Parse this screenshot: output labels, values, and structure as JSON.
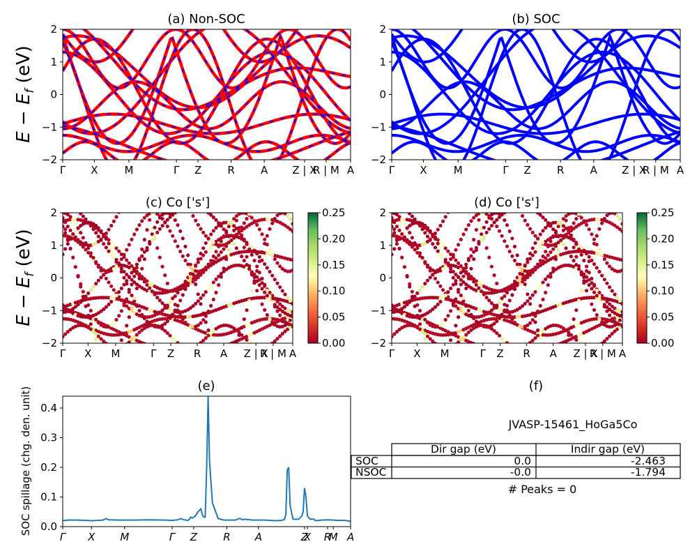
{
  "chart_data": [
    {
      "id": "a",
      "type": "line",
      "title": "(a) Non-SOC",
      "ylabel": "E − E_f (eV)",
      "ylim": [
        -2,
        2
      ],
      "yticks": [
        "−2",
        "−1",
        "0",
        "1",
        "2"
      ],
      "kpath": [
        "Γ",
        "X",
        "M",
        "Γ",
        "Z",
        "R",
        "A",
        "Z | X",
        "R | M",
        "A"
      ],
      "kpath_pos": [
        0,
        0.11,
        0.23,
        0.395,
        0.47,
        0.585,
        0.7,
        0.84,
        0.915,
        1.0
      ],
      "series": [
        {
          "color": "#ff0000",
          "style": "solid"
        },
        {
          "color": "#0000ff",
          "style": "dashed"
        }
      ]
    },
    {
      "id": "b",
      "type": "line",
      "title": "(b) SOC",
      "ylim": [
        -2,
        2
      ],
      "yticks": [
        "−2",
        "−1",
        "0",
        "1",
        "2"
      ],
      "kpath": [
        "Γ",
        "X",
        "M",
        "Γ",
        "Z",
        "R",
        "A",
        "Z | X",
        "R | M",
        "A"
      ],
      "kpath_pos": [
        0,
        0.11,
        0.23,
        0.395,
        0.47,
        0.585,
        0.7,
        0.84,
        0.915,
        1.0
      ],
      "series": [
        {
          "color": "#0000ff",
          "style": "solid"
        }
      ]
    },
    {
      "id": "c",
      "type": "scatter",
      "title": "(c)  Co ['s']",
      "ylabel": "E − E_f (eV)",
      "ylim": [
        -2,
        2
      ],
      "yticks": [
        "−2",
        "−1",
        "0",
        "1",
        "2"
      ],
      "kpath": [
        "Γ",
        "X",
        "M",
        "Γ",
        "Z",
        "R",
        "A",
        "Z | X",
        "R | M",
        "A"
      ],
      "kpath_pos": [
        0,
        0.11,
        0.23,
        0.395,
        0.47,
        0.585,
        0.7,
        0.84,
        0.915,
        1.0
      ],
      "colorbar": {
        "min": 0.0,
        "max": 0.25,
        "ticks": [
          "0.00",
          "0.05",
          "0.10",
          "0.15",
          "0.20",
          "0.25"
        ],
        "cmap": "RdYlGn"
      }
    },
    {
      "id": "d",
      "type": "scatter",
      "title": "(d) Co ['s']",
      "ylim": [
        -2,
        2
      ],
      "yticks": [
        "−2",
        "−1",
        "0",
        "1",
        "2"
      ],
      "kpath": [
        "Γ",
        "X",
        "M",
        "Γ",
        "Z",
        "R",
        "A",
        "Z | X",
        "R | M",
        "A"
      ],
      "kpath_pos": [
        0,
        0.11,
        0.23,
        0.395,
        0.47,
        0.585,
        0.7,
        0.84,
        0.915,
        1.0
      ],
      "colorbar": {
        "min": 0.0,
        "max": 0.25,
        "ticks": [
          "0.00",
          "0.05",
          "0.10",
          "0.15",
          "0.20",
          "0.25"
        ],
        "cmap": "RdYlGn"
      }
    },
    {
      "id": "e",
      "type": "line",
      "title": "(e)",
      "ylabel": "SOC spillage (chg. den. unit)",
      "ylim": [
        0,
        0.44
      ],
      "yticks": [
        "0.0",
        "0.1",
        "0.2",
        "0.3",
        "0.4"
      ],
      "ytick_vals": [
        0,
        0.1,
        0.2,
        0.3,
        0.4
      ],
      "kpath": [
        "Γ",
        "X",
        "M",
        "Γ",
        "Z",
        "R",
        "A",
        "Z",
        "X",
        "R",
        "M",
        "A"
      ],
      "kpath_pos": [
        0,
        0.1,
        0.215,
        0.38,
        0.455,
        0.57,
        0.68,
        0.84,
        0.85,
        0.92,
        0.94,
        1.0
      ],
      "x": [
        0,
        0.02,
        0.05,
        0.08,
        0.1,
        0.12,
        0.14,
        0.15,
        0.16,
        0.2,
        0.25,
        0.3,
        0.35,
        0.36,
        0.38,
        0.4,
        0.41,
        0.42,
        0.43,
        0.435,
        0.44,
        0.445,
        0.45,
        0.46,
        0.47,
        0.48,
        0.485,
        0.49,
        0.495,
        0.5,
        0.505,
        0.51,
        0.52,
        0.54,
        0.56,
        0.6,
        0.615,
        0.62,
        0.625,
        0.63,
        0.66,
        0.7,
        0.74,
        0.76,
        0.77,
        0.775,
        0.78,
        0.785,
        0.79,
        0.8,
        0.82,
        0.83,
        0.835,
        0.84,
        0.845,
        0.85,
        0.86,
        0.87,
        0.875,
        0.88,
        0.9,
        0.92,
        0.94,
        0.96,
        0.98,
        1.0
      ],
      "values": [
        0.02,
        0.022,
        0.022,
        0.021,
        0.02,
        0.021,
        0.022,
        0.027,
        0.023,
        0.022,
        0.022,
        0.023,
        0.022,
        0.022,
        0.021,
        0.023,
        0.027,
        0.023,
        0.022,
        0.021,
        0.025,
        0.032,
        0.029,
        0.035,
        0.05,
        0.06,
        0.04,
        0.032,
        0.032,
        0.2,
        0.44,
        0.22,
        0.08,
        0.027,
        0.022,
        0.022,
        0.028,
        0.025,
        0.023,
        0.025,
        0.022,
        0.022,
        0.02,
        0.021,
        0.024,
        0.04,
        0.19,
        0.2,
        0.07,
        0.025,
        0.025,
        0.035,
        0.05,
        0.13,
        0.1,
        0.035,
        0.025,
        0.026,
        0.022,
        0.02,
        0.022,
        0.023,
        0.022,
        0.021,
        0.021,
        0.018
      ],
      "series": [
        {
          "color": "#1f77b4"
        }
      ]
    }
  ],
  "panel_f": {
    "title": "(f)",
    "material": "JVASP-15461_HoGa5Co",
    "table": {
      "columns": [
        "",
        "Dir gap (eV)",
        "Indir gap (eV)"
      ],
      "rows": [
        [
          "SOC",
          "0.0",
          "-2.463"
        ],
        [
          "NSOC",
          "-0.0",
          "-1.794"
        ]
      ]
    },
    "peaks": "# Peaks = 0"
  }
}
